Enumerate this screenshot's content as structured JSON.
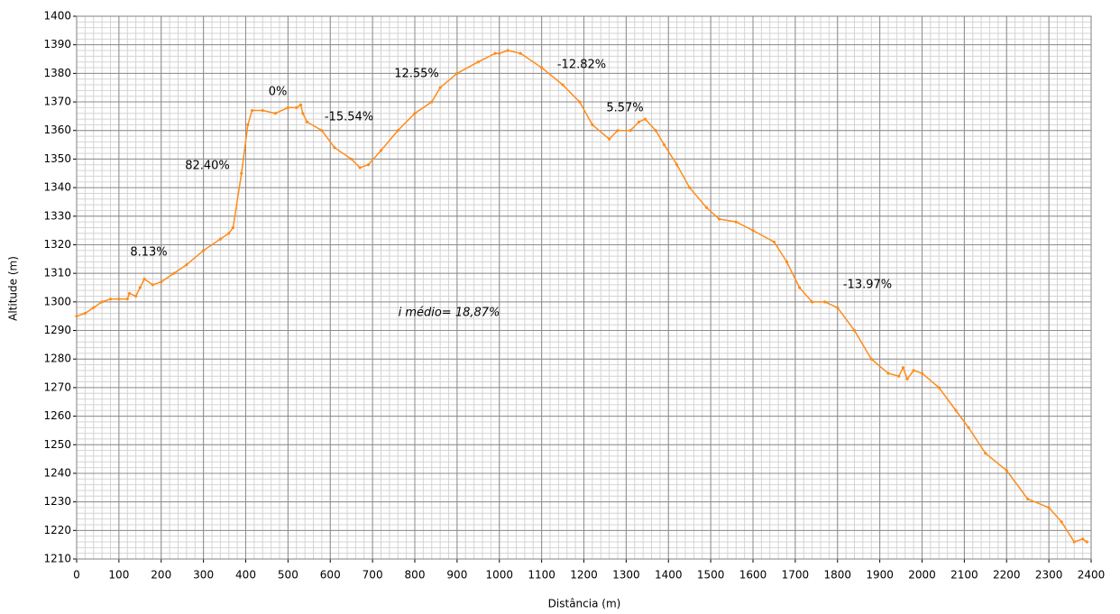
{
  "chart_data": {
    "type": "line",
    "x_label": "Distância (m)",
    "y_label": "Altitude (m)",
    "x": [
      0,
      20,
      40,
      60,
      80,
      100,
      120,
      125,
      140,
      150,
      160,
      180,
      200,
      230,
      260,
      300,
      340,
      360,
      370,
      390,
      405,
      415,
      440,
      470,
      500,
      520,
      530,
      535,
      545,
      580,
      610,
      650,
      670,
      690,
      720,
      760,
      800,
      840,
      860,
      900,
      950,
      990,
      1000,
      1020,
      1050,
      1100,
      1150,
      1190,
      1220,
      1260,
      1280,
      1310,
      1330,
      1345,
      1370,
      1390,
      1420,
      1450,
      1490,
      1520,
      1560,
      1600,
      1650,
      1680,
      1710,
      1740,
      1770,
      1800,
      1840,
      1880,
      1920,
      1945,
      1955,
      1965,
      1980,
      2000,
      2040,
      2080,
      2110,
      2150,
      2200,
      2250,
      2300,
      2330,
      2360,
      2380,
      2390
    ],
    "series": [
      {
        "color": "#ff8c1a",
        "values": [
          1295,
          1296,
          1298,
          1300,
          1301,
          1301,
          1301,
          1303,
          1302,
          1305,
          1308,
          1306,
          1307,
          1310,
          1313,
          1318,
          1322,
          1324,
          1326,
          1345,
          1362,
          1367,
          1367,
          1366,
          1368,
          1368,
          1369,
          1366,
          1363,
          1360,
          1354,
          1350,
          1347,
          1348,
          1353,
          1360,
          1366,
          1370,
          1375,
          1380,
          1384,
          1387,
          1387,
          1388,
          1387,
          1382,
          1376,
          1370,
          1362,
          1357,
          1360,
          1360,
          1363,
          1364,
          1360,
          1355,
          1348,
          1340,
          1333,
          1329,
          1328,
          1325,
          1321,
          1314,
          1305,
          1300,
          1300,
          1298,
          1290,
          1280,
          1275,
          1274,
          1277,
          1273,
          1276,
          1275,
          1270,
          1262,
          1256,
          1247,
          1241,
          1231,
          1228,
          1223,
          1216,
          1217,
          1216
        ]
      }
    ],
    "annotations": [
      "8.13%",
      "82.40%",
      "0%",
      "-15.54%",
      "12.55%",
      "-12.82%",
      "5.57%",
      "-13.97%",
      "i médio= 18,87%"
    ],
    "xlim": [
      0,
      2400
    ],
    "ylim": [
      1210,
      1400
    ],
    "xticks": [
      0,
      100,
      200,
      300,
      400,
      500,
      600,
      700,
      800,
      900,
      1000,
      1100,
      1200,
      1300,
      1400,
      1500,
      1600,
      1700,
      1800,
      1900,
      2000,
      2100,
      2200,
      2300,
      2400
    ],
    "yticks": [
      1210,
      1220,
      1230,
      1240,
      1250,
      1260,
      1270,
      1280,
      1290,
      1300,
      1310,
      1320,
      1330,
      1340,
      1350,
      1360,
      1370,
      1380,
      1390,
      1400
    ],
    "grid": true,
    "minor_grid": {
      "x_step": 20,
      "y_step": 2
    }
  }
}
